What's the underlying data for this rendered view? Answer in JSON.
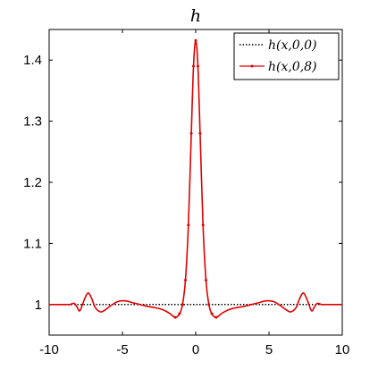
{
  "chart_data": {
    "type": "line",
    "title": "h",
    "xlabel": "",
    "ylabel": "",
    "xlim": [
      -10,
      10
    ],
    "ylim": [
      0.95,
      1.45
    ],
    "xticks": [
      -10,
      -5,
      0,
      5,
      10
    ],
    "yticks": [
      1,
      1.1,
      1.2,
      1.3,
      1.4
    ],
    "xtick_labels": [
      "-10",
      "-5",
      "0",
      "5",
      "10"
    ],
    "ytick_labels": [
      "1",
      "1.1",
      "1.2",
      "1.3",
      "1.4"
    ],
    "grid": false,
    "legend_position": "top-right",
    "series": [
      {
        "name": "h(x,0,0)",
        "style": "dotted",
        "marker": "none",
        "color": "#000000",
        "x": [
          -10,
          10
        ],
        "y": [
          1.0,
          1.0
        ]
      },
      {
        "name": "h(x,0,8)",
        "style": "solid",
        "marker": "point",
        "color": "#e00000",
        "x": [
          -10,
          -9,
          -8.6,
          -8.3,
          -8.1,
          -7.9,
          -7.6,
          -7.35,
          -7.1,
          -6.85,
          -6.5,
          -6.2,
          -5.8,
          -5.3,
          -4.8,
          -4.3,
          -3.8,
          -3.3,
          -2.8,
          -2.3,
          -1.8,
          -1.4,
          -1.1,
          -0.9,
          -0.7,
          -0.5,
          -0.3,
          -0.15,
          0,
          0.15,
          0.3,
          0.5,
          0.7,
          0.9,
          1.1,
          1.4,
          1.8,
          2.3,
          2.8,
          3.3,
          3.8,
          4.3,
          4.8,
          5.3,
          5.8,
          6.2,
          6.5,
          6.85,
          7.1,
          7.35,
          7.6,
          7.9,
          8.1,
          8.3,
          8.6,
          9,
          10
        ],
        "y": [
          1.0,
          1.0,
          1.0,
          1.002,
          0.996,
          0.99,
          1.008,
          1.019,
          1.01,
          0.995,
          0.988,
          0.991,
          0.998,
          1.005,
          1.006,
          1.003,
          1.0,
          0.997,
          0.995,
          0.992,
          0.986,
          0.979,
          0.985,
          1.0,
          1.04,
          1.13,
          1.28,
          1.39,
          1.432,
          1.39,
          1.28,
          1.13,
          1.04,
          1.0,
          0.985,
          0.979,
          0.986,
          0.992,
          0.995,
          0.997,
          1.0,
          1.003,
          1.006,
          1.005,
          0.998,
          0.991,
          0.988,
          0.995,
          1.01,
          1.019,
          1.008,
          0.99,
          0.996,
          1.002,
          1.0,
          1.0,
          1.0
        ]
      }
    ]
  }
}
